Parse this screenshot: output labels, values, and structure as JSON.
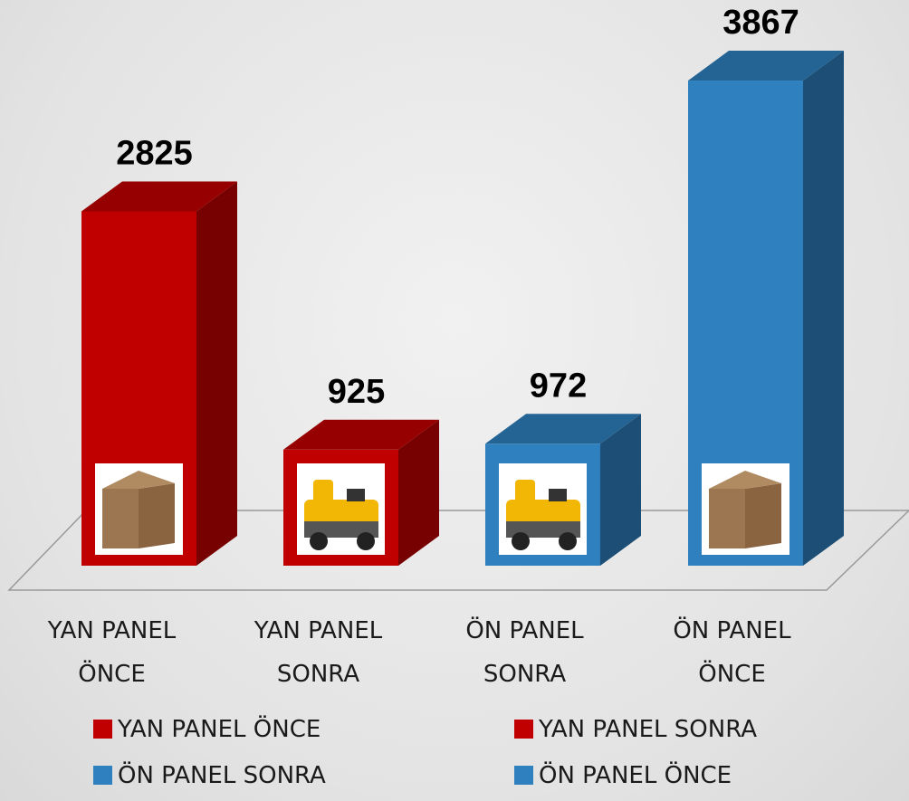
{
  "chart_data": {
    "type": "bar3d",
    "categories": [
      "YAN PANEL ÖNCE",
      "YAN PANEL SONRA",
      "ÖN PANEL SONRA",
      "ÖN PANEL ÖNCE"
    ],
    "values": [
      2825,
      925,
      972,
      3867
    ],
    "colors": [
      "#c00000",
      "#c00000",
      "#2e80be",
      "#2e80be"
    ],
    "legend": true
  }
}
